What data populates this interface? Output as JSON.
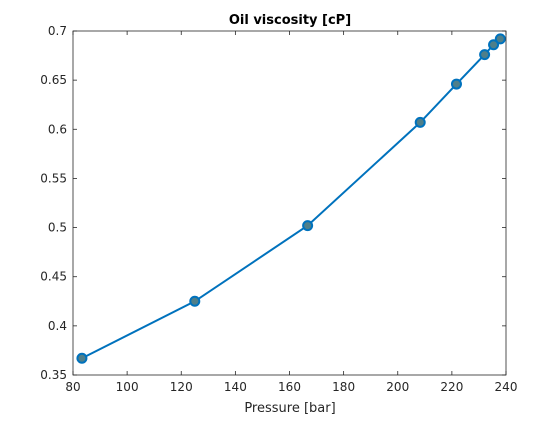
{
  "chart_data": {
    "type": "line",
    "title": "Oil viscosity [cP]",
    "xlabel": "Pressure [bar]",
    "ylabel": "",
    "xlim": [
      80,
      240
    ],
    "ylim": [
      0.35,
      0.7
    ],
    "xticks": [
      80,
      100,
      120,
      140,
      160,
      180,
      200,
      220,
      240
    ],
    "yticks": [
      0.35,
      0.4,
      0.45,
      0.5,
      0.55,
      0.6,
      0.65,
      0.7
    ],
    "xtick_labels": [
      "80",
      "100",
      "120",
      "140",
      "160",
      "180",
      "200",
      "220",
      "240"
    ],
    "ytick_labels": [
      "0.35",
      "0.4",
      "0.45",
      "0.5",
      "0.55",
      "0.6",
      "0.65",
      "0.7"
    ],
    "grid": false,
    "series": [
      {
        "x": [
          83.3,
          125,
          166.7,
          208.3,
          221.7,
          232.1,
          235.4,
          237.9
        ],
        "y": [
          0.367,
          0.425,
          0.502,
          0.607,
          0.646,
          0.676,
          0.686,
          0.692
        ],
        "color": "#0072bd",
        "marker_fill": "#4f7f8a",
        "marker": "circle"
      }
    ]
  }
}
